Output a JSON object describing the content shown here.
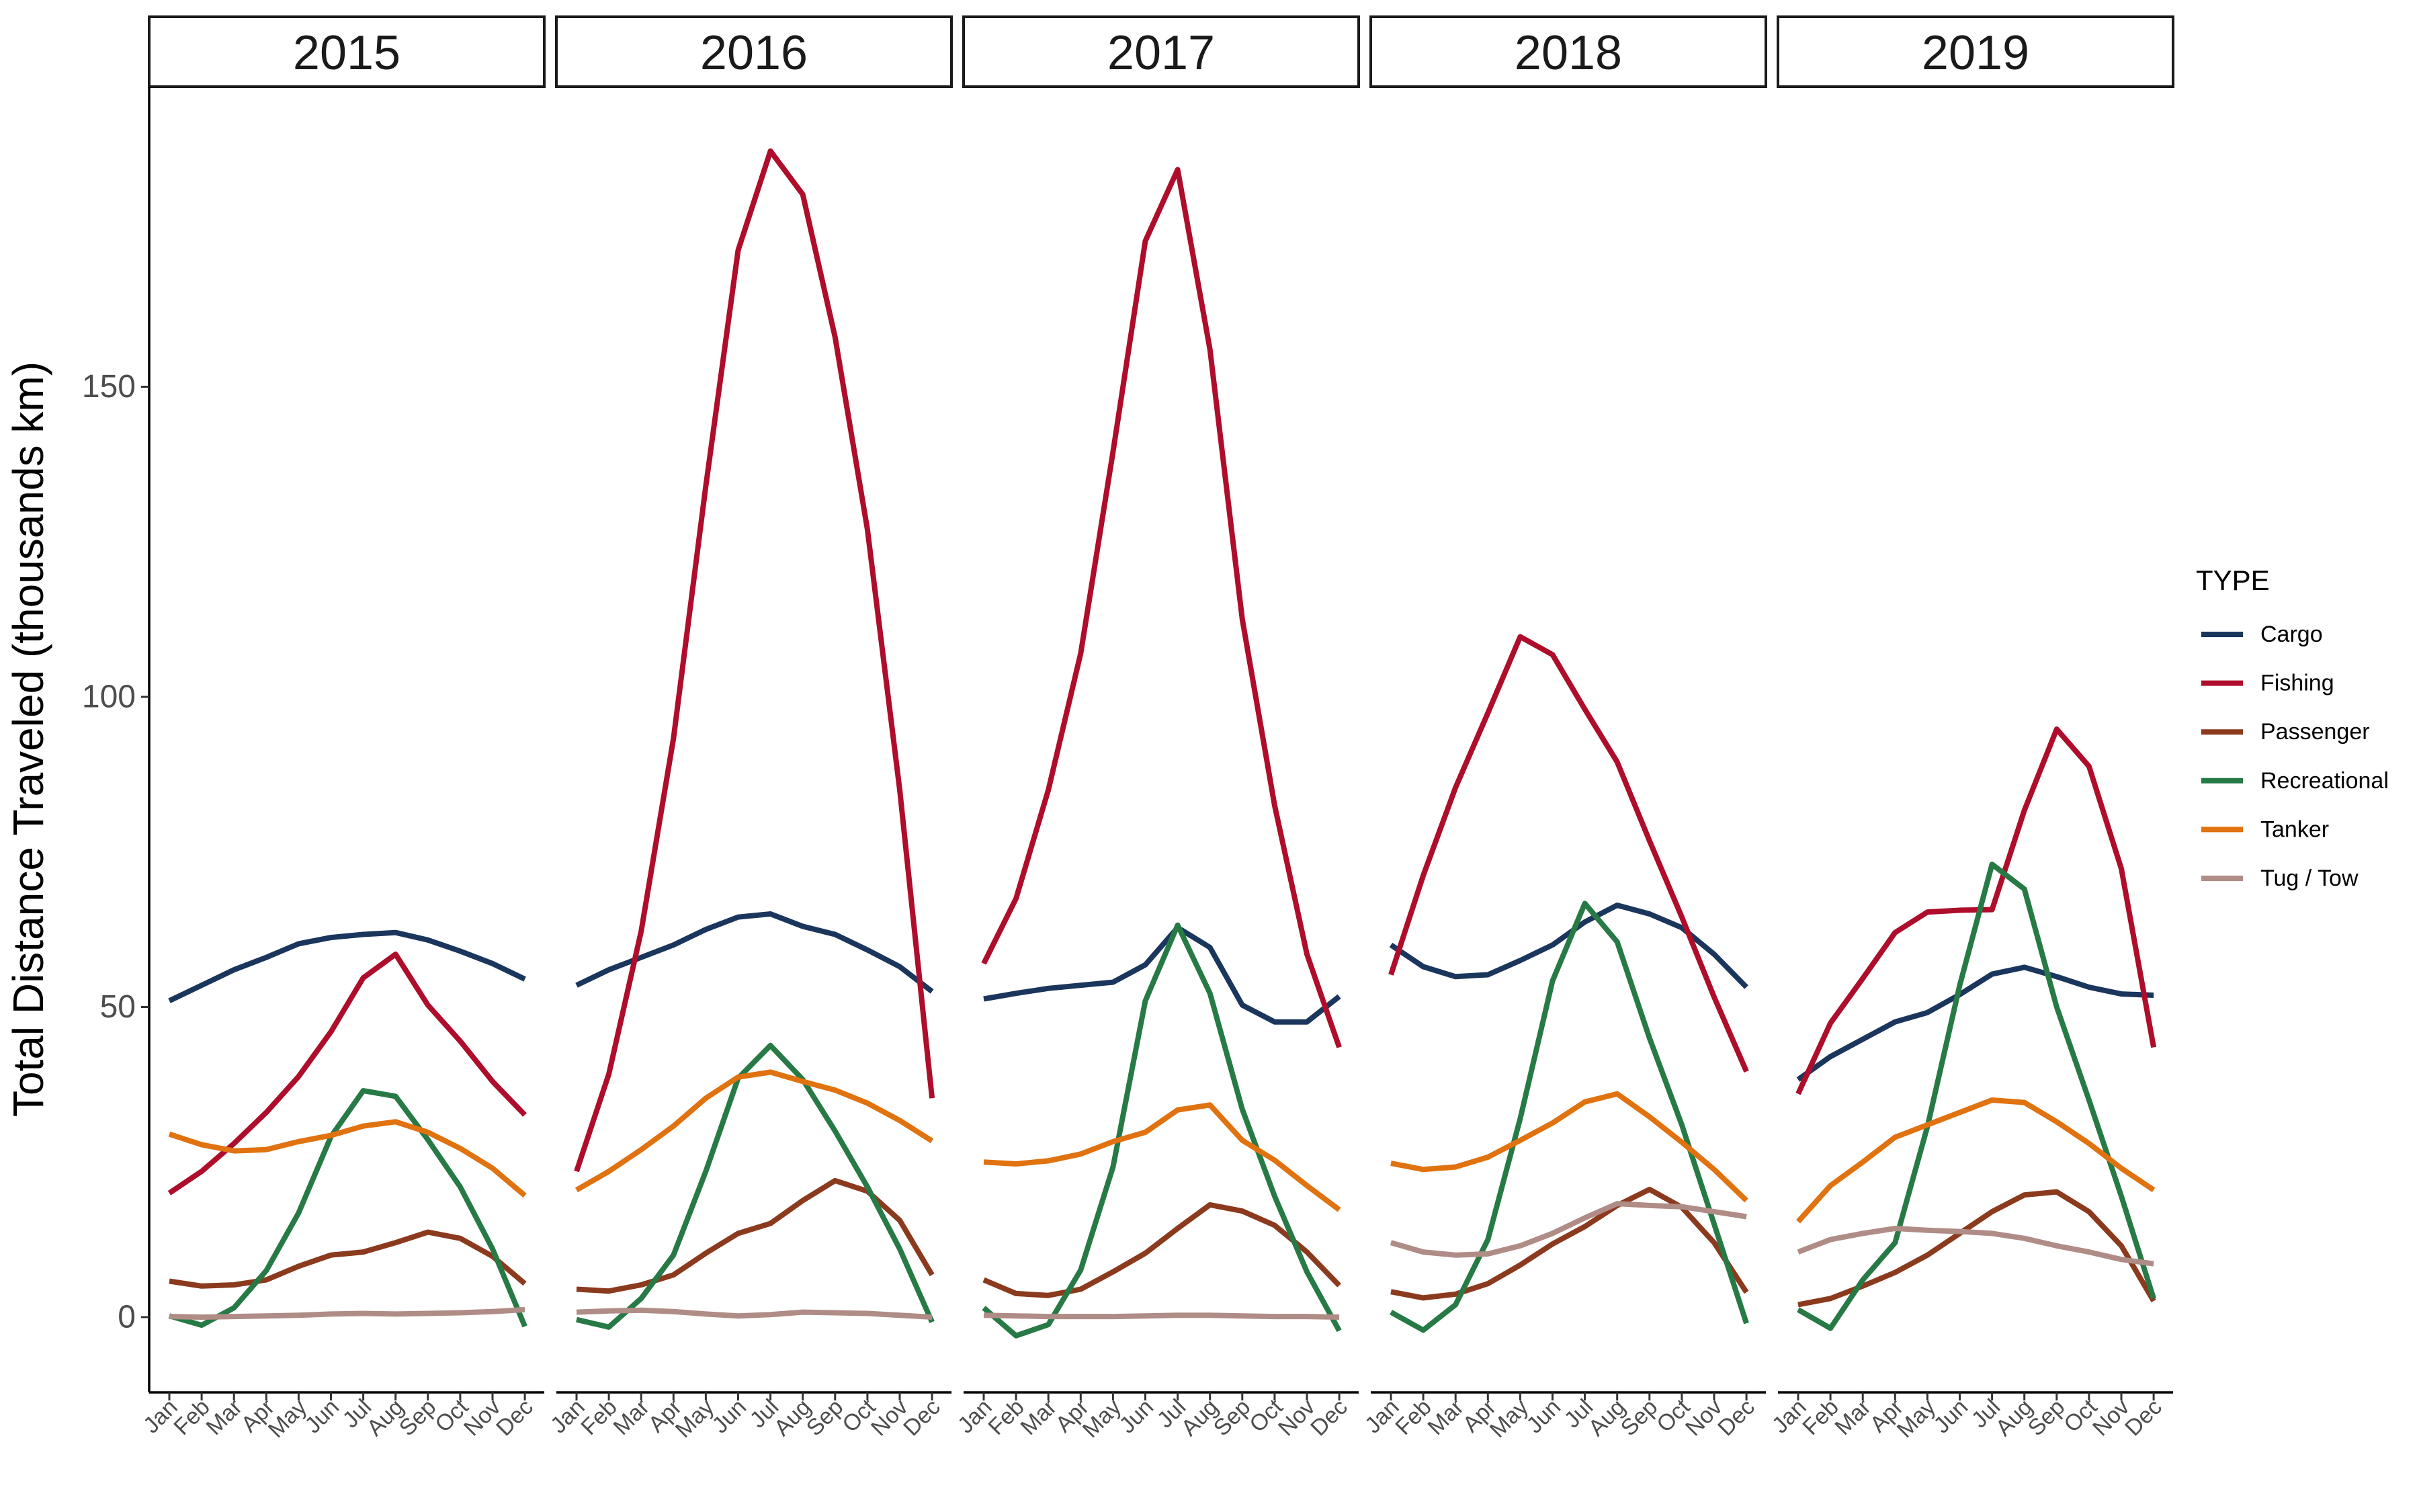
{
  "chart_data": {
    "type": "line",
    "title": "",
    "xlabel": "",
    "ylabel": "Total Distance Traveled (thousands km)",
    "ylim": [
      -12,
      198
    ],
    "yticks": [
      0,
      50,
      100,
      150
    ],
    "grid": false,
    "legend": {
      "title": "TYPE",
      "placement": "right"
    },
    "facets": [
      "2015",
      "2016",
      "2017",
      "2018",
      "2019"
    ],
    "months": [
      "Jan",
      "Feb",
      "Mar",
      "Apr",
      "May",
      "Jun",
      "Jul",
      "Aug",
      "Sep",
      "Oct",
      "Nov",
      "Dec"
    ],
    "series": [
      {
        "name": "Cargo",
        "color": "#1b365d",
        "values": {
          "2015": [
            51,
            53.5,
            56,
            58,
            60.2,
            61.2,
            61.7,
            62,
            60.8,
            59,
            57,
            54.5
          ],
          "2016": [
            53.5,
            56,
            58,
            60,
            62.5,
            64.5,
            65,
            63,
            61.7,
            59.2,
            56.5,
            52.5
          ],
          "2017": [
            51.3,
            52.2,
            53,
            53.5,
            54,
            56.8,
            62.8,
            59.6,
            50.3,
            47.6,
            47.6,
            51.7
          ],
          "2018": [
            60,
            56.5,
            54.9,
            55.2,
            57.5,
            60,
            63.7,
            66.4,
            65,
            62.8,
            58.5,
            53.2
          ],
          "2019": [
            38.3,
            42,
            44.8,
            47.6,
            49.1,
            52,
            55.3,
            56.4,
            54.9,
            53.2,
            52.1,
            51.9
          ]
        }
      },
      {
        "name": "Fishing",
        "color": "#ae0d2b",
        "values": {
          "2015": [
            20,
            23.5,
            28,
            33,
            38.8,
            46,
            54.7,
            58.5,
            50.3,
            44.5,
            38,
            32.6
          ],
          "2016": [
            23.5,
            39.2,
            62.2,
            93.3,
            134,
            172,
            188,
            181,
            158,
            127,
            85,
            35.3
          ],
          "2017": [
            57,
            67.5,
            85,
            107,
            139.5,
            173.5,
            185,
            156,
            112.5,
            82.5,
            58.5,
            43.5
          ],
          "2018": [
            55.2,
            71.2,
            85.4,
            97.4,
            109.7,
            106.8,
            98,
            89.5,
            76.8,
            64.5,
            51.6,
            39.6
          ],
          "2019": [
            36,
            47.4,
            54.6,
            62,
            65.3,
            65.6,
            65.7,
            81.7,
            94.8,
            88.8,
            72.3,
            43.5
          ]
        }
      },
      {
        "name": "Passenger",
        "color": "#8b3a1e",
        "values": {
          "2015": [
            5.8,
            5,
            5.2,
            6,
            8.2,
            10,
            10.5,
            12,
            13.7,
            12.7,
            9.8,
            5.4
          ],
          "2016": [
            4.5,
            4.2,
            5.2,
            6.8,
            10.3,
            13.5,
            15.1,
            18.8,
            22,
            20.3,
            15.6,
            6.8
          ],
          "2017": [
            6,
            3.8,
            3.5,
            4.5,
            7.3,
            10.3,
            14.3,
            18.1,
            17.1,
            14.8,
            10.5,
            5.1
          ],
          "2018": [
            4.1,
            3.1,
            3.7,
            5.4,
            8.4,
            11.8,
            14.6,
            18,
            20.6,
            17.7,
            12,
            4
          ],
          "2019": [
            2,
            3,
            5,
            7.2,
            10,
            13.5,
            17,
            19.7,
            20.2,
            17,
            11.5,
            2.6
          ]
        }
      },
      {
        "name": "Recreational",
        "color": "#277a45",
        "values": {
          "2015": [
            0.2,
            -1.3,
            1.5,
            7.5,
            16.8,
            29.1,
            36.5,
            35.6,
            28.6,
            21,
            11,
            -1.5
          ],
          "2016": [
            -0.4,
            -1.6,
            3,
            10,
            23.5,
            38.5,
            43.8,
            38.3,
            30,
            21,
            11,
            -0.8
          ],
          "2017": [
            1.5,
            -3,
            -1.2,
            7.6,
            24.2,
            51,
            63.2,
            52.2,
            33.5,
            19.5,
            7.3,
            -2.2
          ],
          "2018": [
            0.8,
            -2.1,
            2,
            12.5,
            32,
            54.2,
            66.7,
            60.5,
            45,
            31,
            15,
            -1
          ],
          "2019": [
            1.2,
            -1.8,
            6,
            12,
            30.7,
            53.5,
            73,
            69,
            50,
            35,
            19.5,
            3
          ]
        }
      },
      {
        "name": "Tanker",
        "color": "#e0720f",
        "values": {
          "2015": [
            29.5,
            27.8,
            26.8,
            27,
            28.3,
            29.3,
            30.8,
            31.5,
            29.8,
            27.2,
            24,
            19.6
          ],
          "2016": [
            20.5,
            23.5,
            27,
            30.8,
            35.3,
            38.7,
            39.5,
            38,
            36.6,
            34.5,
            31.7,
            28.4
          ],
          "2017": [
            25,
            24.7,
            25.2,
            26.3,
            28.3,
            29.8,
            33.4,
            34.2,
            28.5,
            25.3,
            21.2,
            17.3
          ],
          "2018": [
            24.8,
            23.8,
            24.2,
            25.8,
            28.5,
            31.3,
            34.7,
            36,
            32.3,
            28.2,
            23.8,
            18.8
          ],
          "2019": [
            15.4,
            21.2,
            25,
            29,
            31,
            33,
            35,
            34.6,
            31.5,
            28,
            24,
            20.5
          ]
        }
      },
      {
        "name": "Tug / Tow",
        "color": "#b08c86",
        "values": {
          "2015": [
            0.1,
            0,
            0.1,
            0.2,
            0.3,
            0.5,
            0.6,
            0.5,
            0.6,
            0.7,
            0.9,
            1.2
          ],
          "2016": [
            0.8,
            1,
            1.1,
            0.9,
            0.5,
            0.2,
            0.4,
            0.8,
            0.7,
            0.6,
            0.3,
            0
          ],
          "2017": [
            0.3,
            0.2,
            0.1,
            0.1,
            0.1,
            0.2,
            0.3,
            0.3,
            0.2,
            0.1,
            0.1,
            0
          ],
          "2018": [
            12,
            10.5,
            10,
            10.2,
            11.5,
            13.5,
            16,
            18.3,
            18,
            17.8,
            17,
            16.2
          ],
          "2019": [
            10.5,
            12.5,
            13.5,
            14.3,
            14,
            13.8,
            13.5,
            12.7,
            11.5,
            10.5,
            9.3,
            8.6
          ]
        }
      }
    ]
  }
}
